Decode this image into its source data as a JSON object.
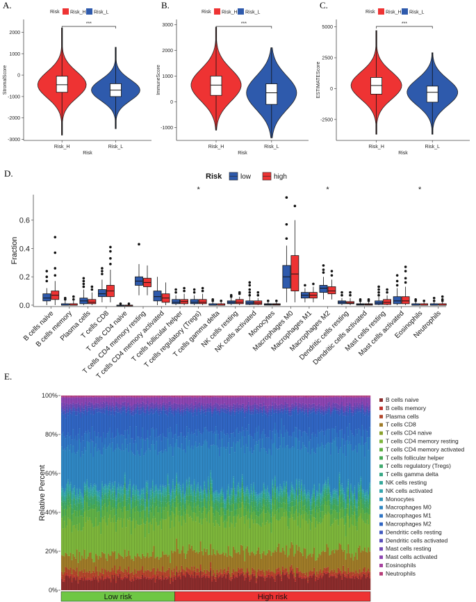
{
  "colors": {
    "high": "#EE3333",
    "low": "#2E5AAC",
    "low_risk_bar": "#6EC744",
    "high_risk_bar": "#EE3333"
  },
  "chart_data": [
    {
      "panel": "A.",
      "type": "violin",
      "legend_title": "Risk",
      "legend_items": [
        "Risk_H",
        "Risk_L"
      ],
      "ylabel": "StromalScore",
      "xlabel": "Risk",
      "categories": [
        "Risk_H",
        "Risk_L"
      ],
      "yticks": [
        -3000,
        -2000,
        -1000,
        0,
        1000,
        2000
      ],
      "tick_labels": [
        "-3000",
        "-2000",
        "-1000",
        "0",
        "1000",
        "2000"
      ],
      "ylim": [
        -3050,
        2600
      ],
      "significance": "***",
      "boxes": [
        {
          "min": -2100,
          "q1": -800,
          "median": -450,
          "q3": -50,
          "max": 1600,
          "tail_low": -2800,
          "tail_high": 2200
        },
        {
          "min": -1900,
          "q1": -1000,
          "median": -700,
          "q3": -400,
          "max": 500,
          "tail_low": -2500,
          "tail_high": 1300
        }
      ]
    },
    {
      "panel": "B.",
      "type": "violin",
      "legend_title": "Risk",
      "legend_items": [
        "Risk_H",
        "Risk_L"
      ],
      "ylabel": "ImmuneScore",
      "xlabel": "Risk",
      "categories": [
        "Risk_H",
        "Risk_L"
      ],
      "yticks": [
        -1000,
        0,
        1000,
        2000,
        3000
      ],
      "tick_labels": [
        "-1000",
        "0",
        "1000",
        "2000",
        "3000"
      ],
      "ylim": [
        -1500,
        3200
      ],
      "significance": "***",
      "boxes": [
        {
          "min": -400,
          "q1": 250,
          "median": 650,
          "q3": 1000,
          "max": 2000,
          "tail_low": -1100,
          "tail_high": 2900
        },
        {
          "min": -700,
          "q1": -100,
          "median": 350,
          "q3": 700,
          "max": 1600,
          "tail_low": -1400,
          "tail_high": 2100
        }
      ]
    },
    {
      "panel": "C.",
      "type": "violin",
      "legend_title": "Risk",
      "legend_items": [
        "Risk_H",
        "Risk_L"
      ],
      "ylabel": "ESTIMATEScore",
      "xlabel": "Risk",
      "categories": [
        "Risk_H",
        "Risk_L"
      ],
      "yticks": [
        -2500,
        0,
        2500,
        5000
      ],
      "tick_labels": [
        "-2500",
        "0",
        "2500",
        "5000"
      ],
      "ylim": [
        -4200,
        5600
      ],
      "significance": "***",
      "boxes": [
        {
          "min": -2500,
          "q1": -450,
          "median": 250,
          "q3": 900,
          "max": 3200,
          "tail_low": -3700,
          "tail_high": 4700
        },
        {
          "min": -2700,
          "q1": -1100,
          "median": -300,
          "q3": 200,
          "max": 1900,
          "tail_low": -3700,
          "tail_high": 2900
        }
      ]
    },
    {
      "panel": "D.",
      "type": "boxplot",
      "legend_title": "Risk",
      "legend_items": [
        "low",
        "high"
      ],
      "ylabel": "Fraction",
      "yticks": [
        0.0,
        0.2,
        0.4,
        0.6
      ],
      "tick_labels": [
        "0.0",
        "0.2",
        "0.4",
        "0.6"
      ],
      "ylim": [
        -0.01,
        0.78
      ],
      "significance_mark": "*",
      "categories": [
        "B cells naive",
        "B cells memory",
        "Plasma cells",
        "T cells CD8",
        "T cells CD4 naive",
        "T cells CD4 memory resting",
        "T cells CD4 memory activated",
        "T cells follicular helper",
        "T cells regulatory (Tregs)",
        "T cells gamma delta",
        "NK cells resting",
        "NK cells activated",
        "Monocytes",
        "Macrophages M0",
        "Macrophages M1",
        "Macrophages M2",
        "Dendritic cells resting",
        "Dendritic cells activated",
        "Mast cells resting",
        "Mast cells activated",
        "Eosinophils",
        "Neutrophils"
      ],
      "significant": [
        false,
        false,
        false,
        false,
        false,
        false,
        false,
        false,
        true,
        false,
        false,
        false,
        false,
        false,
        false,
        true,
        false,
        false,
        false,
        false,
        true,
        false
      ],
      "series": [
        {
          "name": "low",
          "boxes": [
            [
              0,
              0.03,
              0.05,
              0.08,
              0.12,
              [
                0.17,
                0.2,
                0.24
              ]
            ],
            [
              0,
              0,
              0,
              0.01,
              0.03,
              [
                0.04,
                0.05
              ]
            ],
            [
              0,
              0.01,
              0.03,
              0.05,
              0.11,
              [
                0.13,
                0.15,
                0.17,
                0.19
              ]
            ],
            [
              0.02,
              0.06,
              0.08,
              0.11,
              0.18,
              [
                0.22,
                0.24,
                0.26
              ]
            ],
            [
              0,
              0,
              0,
              0,
              0,
              [
                0.01
              ]
            ],
            [
              0.07,
              0.14,
              0.17,
              0.2,
              0.29,
              [
                0.43
              ]
            ],
            [
              0,
              0.03,
              0.06,
              0.1,
              0.2,
              []
            ],
            [
              0,
              0.01,
              0.02,
              0.04,
              0.07,
              [
                0.09,
                0.11
              ]
            ],
            [
              0,
              0.01,
              0.02,
              0.04,
              0.07,
              [
                0.09,
                0.11
              ]
            ],
            [
              0,
              0,
              0,
              0.01,
              0.02,
              [
                0.03,
                0.04
              ]
            ],
            [
              0,
              0.01,
              0.02,
              0.03,
              0.05,
              [
                0.06,
                0.07
              ]
            ],
            [
              0,
              0.005,
              0.015,
              0.03,
              0.06,
              [
                0.07,
                0.09,
                0.11,
                0.14,
                0.16
              ]
            ],
            [
              0,
              0,
              0.005,
              0.01,
              0.02,
              [
                0.03
              ]
            ],
            [
              0.02,
              0.12,
              0.2,
              0.28,
              0.42,
              [
                0.47,
                0.57,
                0.76
              ]
            ],
            [
              0.02,
              0.05,
              0.07,
              0.09,
              0.12,
              [
                0.14
              ]
            ],
            [
              0.04,
              0.09,
              0.12,
              0.14,
              0.2,
              [
                0.23,
                0.25,
                0.28
              ]
            ],
            [
              0,
              0.01,
              0.02,
              0.03,
              0.05,
              [
                0.07,
                0.09
              ]
            ],
            [
              0,
              0,
              0.005,
              0.01,
              0.02,
              [
                0.03,
                0.04
              ]
            ],
            [
              0,
              0.005,
              0.015,
              0.03,
              0.06,
              [
                0.07,
                0.09,
                0.11,
                0.13
              ]
            ],
            [
              0,
              0.01,
              0.03,
              0.06,
              0.12,
              [
                0.14,
                0.17,
                0.21
              ]
            ],
            [
              0,
              0,
              0,
              0.01,
              0.02,
              [
                0.03,
                0.04
              ]
            ],
            [
              0,
              0,
              0,
              0.01,
              0.02,
              [
                0.03,
                0.05
              ]
            ]
          ]
        },
        {
          "name": "high",
          "boxes": [
            [
              0,
              0.04,
              0.07,
              0.1,
              0.17,
              [
                0.21,
                0.26,
                0.37,
                0.48
              ]
            ],
            [
              0,
              0,
              0,
              0.01,
              0.03,
              [
                0.04,
                0.06
              ]
            ],
            [
              0,
              0.01,
              0.02,
              0.04,
              0.09,
              [
                0.11,
                0.13
              ]
            ],
            [
              0.02,
              0.06,
              0.1,
              0.14,
              0.25,
              [
                0.29,
                0.33,
                0.38,
                0.41
              ]
            ],
            [
              0,
              0,
              0,
              0,
              0,
              [
                0.01
              ]
            ],
            [
              0.07,
              0.13,
              0.16,
              0.19,
              0.28,
              []
            ],
            [
              0,
              0.02,
              0.05,
              0.08,
              0.16,
              []
            ],
            [
              0,
              0.01,
              0.025,
              0.04,
              0.08,
              [
                0.1,
                0.12
              ]
            ],
            [
              0,
              0.01,
              0.02,
              0.04,
              0.08,
              [
                0.1,
                0.12
              ]
            ],
            [
              0,
              0,
              0,
              0.01,
              0.02,
              [
                0.03
              ]
            ],
            [
              0,
              0.01,
              0.02,
              0.04,
              0.06,
              [
                0.08,
                0.09
              ]
            ],
            [
              0,
              0.005,
              0.015,
              0.03,
              0.05,
              [
                0.07,
                0.09
              ]
            ],
            [
              0,
              0,
              0.005,
              0.01,
              0.02,
              [
                0.03
              ]
            ],
            [
              0.02,
              0.1,
              0.22,
              0.35,
              0.6,
              [
                0.7
              ]
            ],
            [
              0.02,
              0.05,
              0.07,
              0.09,
              0.13,
              [
                0.15
              ]
            ],
            [
              0.04,
              0.08,
              0.1,
              0.13,
              0.18,
              [
                0.21,
                0.24
              ]
            ],
            [
              0,
              0.01,
              0.015,
              0.025,
              0.05,
              [
                0.07,
                0.09
              ]
            ],
            [
              0,
              0,
              0.005,
              0.01,
              0.02,
              [
                0.03,
                0.04
              ]
            ],
            [
              0,
              0.005,
              0.02,
              0.04,
              0.07,
              [
                0.09,
                0.11
              ]
            ],
            [
              0,
              0.01,
              0.03,
              0.06,
              0.13,
              [
                0.16,
                0.19,
                0.24,
                0.27
              ]
            ],
            [
              0,
              0,
              0,
              0.01,
              0.02,
              [
                0.03
              ]
            ],
            [
              0,
              0,
              0,
              0.01,
              0.02,
              [
                0.03,
                0.04,
                0.06
              ]
            ]
          ]
        }
      ]
    },
    {
      "panel": "E.",
      "type": "stacked_bar",
      "ylabel": "Relative Percent",
      "yticks": [
        0,
        20,
        40,
        60,
        80,
        100
      ],
      "tick_labels": [
        "0%",
        "20%",
        "40%",
        "60%",
        "80%",
        "100%"
      ],
      "ylim": [
        0,
        100
      ],
      "n_low": 90,
      "n_high": 155,
      "groups": [
        "Low risk",
        "High risk"
      ],
      "cell_types": [
        "B cells naive",
        "B cells memory",
        "Plasma cells",
        "T cells CD8",
        "T cells CD4 naive",
        "T cells CD4 memory resting",
        "T cells CD4 memory activated",
        "T cells follicular helper",
        "T cells regulatory (Tregs)",
        "T cells gamma delta",
        "NK cells resting",
        "NK cells activated",
        "Monocytes",
        "Macrophages M0",
        "Macrophages M1",
        "Macrophages M2",
        "Dendritic cells resting",
        "Dendritic cells activated",
        "Mast cells resting",
        "Mast cells activated",
        "Eosinophils",
        "Neutrophils"
      ],
      "cell_colors": [
        "#8B2B2B",
        "#C0342D",
        "#B2472A",
        "#9E7A27",
        "#8AA12C",
        "#7CB53A",
        "#5FB046",
        "#47AA55",
        "#3EA86C",
        "#38A784",
        "#35A89A",
        "#34A6AE",
        "#3398BA",
        "#2E86C2",
        "#2E74C4",
        "#2F64C2",
        "#3F58BF",
        "#584CB8",
        "#7047B5",
        "#8C44B1",
        "#A7419E",
        "#B63D78"
      ],
      "mean_percent_low": [
        6,
        1,
        3,
        8,
        0,
        17,
        6,
        3,
        3,
        1,
        2,
        2,
        1,
        20,
        7,
        11,
        2,
        1,
        2,
        3,
        0.5,
        0.5
      ],
      "mean_percent_high": [
        7,
        1,
        2,
        10,
        0,
        16,
        5,
        3,
        3,
        1,
        2,
        1.5,
        1,
        22,
        7,
        10,
        1.5,
        1,
        2,
        3.5,
        0.5,
        0.5
      ]
    }
  ]
}
